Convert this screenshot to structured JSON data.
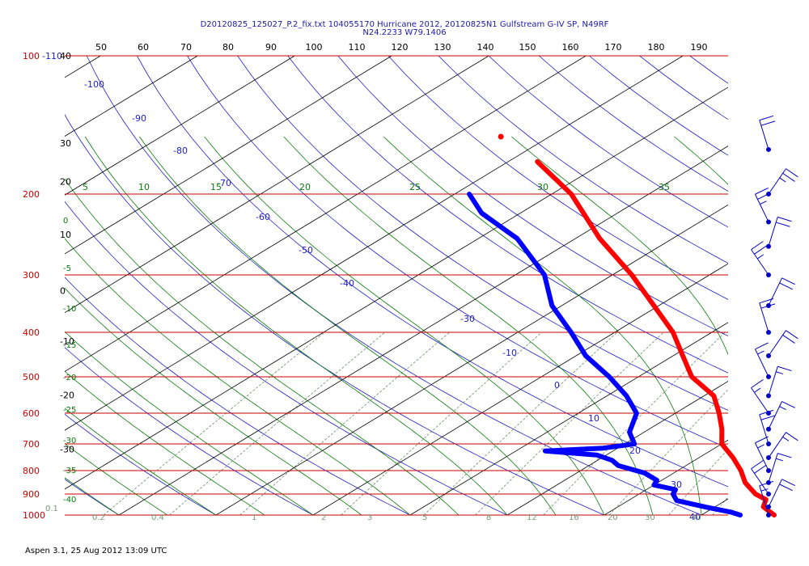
{
  "header": {
    "line1": "D20120825_125027_P.2_fix.txt 104055170 Hurricane 2012, 20120825N1 Gulfstream G-IV SP, N49RF",
    "line2": "N24.2233 W79.1406"
  },
  "footer": {
    "text": "Aspen 3.1, 25 Aug 2012  13:09 UTC"
  },
  "colors": {
    "isobar": "#cc0000",
    "isotherm": "#000000",
    "dry_adiabat": "#2020cc",
    "moist_adiabat": "#0a7a0a",
    "mixing_ratio": "#7a9a7a",
    "temperature_trace": "#ff0000",
    "dewpoint_trace": "#0000ff",
    "wind_barb": "#0000cc"
  },
  "chart_data": {
    "type": "skew-t log-p diagram",
    "pressure_axis": {
      "label_values": [
        "100",
        "200",
        "300",
        "400",
        "500",
        "600",
        "700",
        "800",
        "900",
        "1000"
      ],
      "range": [
        1000,
        100
      ],
      "scale": "log"
    },
    "top_axis_labels": [
      "50",
      "60",
      "70",
      "80",
      "90",
      "100",
      "110",
      "120",
      "130",
      "140",
      "150",
      "160",
      "170",
      "180",
      "190"
    ],
    "isotherm_labels": [
      {
        "value": "-110",
        "p": 100,
        "anchor": "-110"
      },
      {
        "value": "40",
        "p": 100,
        "anchor": "40"
      },
      {
        "value": "30",
        "p": 155,
        "anchor": "30"
      },
      {
        "value": "20",
        "p": 188,
        "anchor": "20"
      },
      {
        "value": "10",
        "p": 245,
        "anchor": "10"
      },
      {
        "value": "0",
        "p": 325,
        "anchor": "0"
      },
      {
        "value": "-10",
        "p": 418,
        "anchor": "-10"
      },
      {
        "value": "-20",
        "p": 548,
        "anchor": "-20"
      },
      {
        "value": "-30",
        "p": 718,
        "anchor": "-30"
      }
    ],
    "dry_adiabat_labels": [
      "-100",
      "-90",
      "-80",
      "-70",
      "-60",
      "-50",
      "-40",
      "-30",
      "-10",
      "0",
      "10",
      "20",
      "30",
      "40"
    ],
    "moist_adiabat_labels": [
      "5",
      "10",
      "15",
      "20",
      "25",
      "30",
      "35"
    ],
    "moist_left_labels": [
      "0",
      "-5",
      "-10",
      "-15",
      "-20",
      "-25",
      "-30",
      "-35",
      "-40"
    ],
    "mixing_ratio_labels": [
      "0.1",
      "0.2",
      "0.4",
      "1",
      "2",
      "3",
      "5",
      "8",
      "12",
      "16",
      "20",
      "30",
      "40"
    ],
    "temperature_profile": [
      {
        "p": 1000,
        "t": 27.5
      },
      {
        "p": 960,
        "t": 25.0
      },
      {
        "p": 925,
        "t": 24.0
      },
      {
        "p": 900,
        "t": 22.0
      },
      {
        "p": 850,
        "t": 19.0
      },
      {
        "p": 800,
        "t": 16.5
      },
      {
        "p": 750,
        "t": 13.5
      },
      {
        "p": 700,
        "t": 10.0
      },
      {
        "p": 650,
        "t": 7.5
      },
      {
        "p": 600,
        "t": 4.5
      },
      {
        "p": 550,
        "t": 1.0
      },
      {
        "p": 500,
        "t": -4.5
      },
      {
        "p": 450,
        "t": -9.0
      },
      {
        "p": 400,
        "t": -14.0
      },
      {
        "p": 350,
        "t": -20.5
      },
      {
        "p": 300,
        "t": -28.0
      },
      {
        "p": 250,
        "t": -37.5
      },
      {
        "p": 200,
        "t": -48.0
      },
      {
        "p": 170,
        "t": -57.0
      }
    ],
    "temperature_isolated_point": {
      "p": 150,
      "t": -65.0
    },
    "dewpoint_profile": [
      {
        "p": 1000,
        "t": 24.0
      },
      {
        "p": 985,
        "t": 22.5
      },
      {
        "p": 960,
        "t": 19.0
      },
      {
        "p": 930,
        "t": 15.0
      },
      {
        "p": 900,
        "t": 13.5
      },
      {
        "p": 880,
        "t": 13.0
      },
      {
        "p": 860,
        "t": 10.0
      },
      {
        "p": 840,
        "t": 9.5
      },
      {
        "p": 810,
        "t": 7.0
      },
      {
        "p": 780,
        "t": 3.0
      },
      {
        "p": 760,
        "t": 1.5
      },
      {
        "p": 740,
        "t": -1.0
      },
      {
        "p": 725,
        "t": -7.0
      },
      {
        "p": 715,
        "t": -1.5
      },
      {
        "p": 700,
        "t": 1.0
      },
      {
        "p": 660,
        "t": -1.5
      },
      {
        "p": 600,
        "t": -4.0
      },
      {
        "p": 550,
        "t": -8.0
      },
      {
        "p": 500,
        "t": -13.0
      },
      {
        "p": 450,
        "t": -19.0
      },
      {
        "p": 400,
        "t": -24.5
      },
      {
        "p": 350,
        "t": -31.0
      },
      {
        "p": 300,
        "t": -37.0
      },
      {
        "p": 250,
        "t": -46.0
      },
      {
        "p": 220,
        "t": -54.0
      },
      {
        "p": 200,
        "t": -58.5
      }
    ],
    "wind_barbs": [
      {
        "p": 1000,
        "kt": 15
      },
      {
        "p": 960,
        "kt": 20
      },
      {
        "p": 900,
        "kt": 20
      },
      {
        "p": 850,
        "kt": 15
      },
      {
        "p": 800,
        "kt": 15
      },
      {
        "p": 750,
        "kt": 15
      },
      {
        "p": 700,
        "kt": 20
      },
      {
        "p": 650,
        "kt": 15
      },
      {
        "p": 600,
        "kt": 15
      },
      {
        "p": 550,
        "kt": 15
      },
      {
        "p": 500,
        "kt": 15
      },
      {
        "p": 450,
        "kt": 20
      },
      {
        "p": 400,
        "kt": 20
      },
      {
        "p": 350,
        "kt": 20
      },
      {
        "p": 300,
        "kt": 25
      },
      {
        "p": 260,
        "kt": 20
      },
      {
        "p": 230,
        "kt": 25
      },
      {
        "p": 200,
        "kt": 25
      },
      {
        "p": 160,
        "kt": 20
      }
    ]
  }
}
